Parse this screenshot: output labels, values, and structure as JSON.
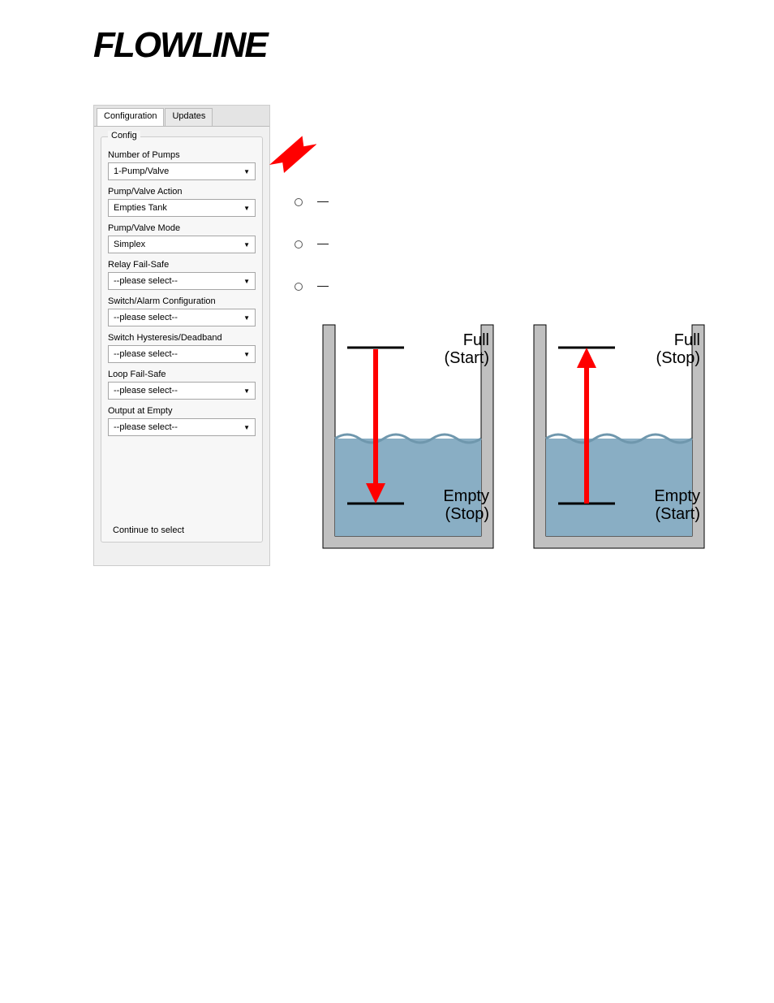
{
  "logo_text": "FLOWLINE",
  "panel": {
    "tabs": [
      {
        "label": "Configuration",
        "active": true
      },
      {
        "label": "Updates",
        "active": false
      }
    ],
    "fieldset_legend": "Config",
    "fields": [
      {
        "label": "Number of Pumps",
        "value": "1-Pump/Valve"
      },
      {
        "label": "Pump/Valve Action",
        "value": "Empties Tank"
      },
      {
        "label": "Pump/Valve Mode",
        "value": "Simplex"
      },
      {
        "label": "Relay Fail-Safe",
        "value": "--please select--"
      },
      {
        "label": "Switch/Alarm Configuration",
        "value": "--please select--"
      },
      {
        "label": "Switch Hysteresis/Deadband",
        "value": "--please select--"
      },
      {
        "label": "Loop Fail-Safe",
        "value": "--please select--"
      },
      {
        "label": "Output at Empty",
        "value": "--please select--"
      }
    ],
    "continue_label": "Continue to select"
  },
  "bullets": [
    {
      "term": "",
      "sep": "—",
      "rest": ""
    },
    {
      "term": "",
      "sep": "—",
      "rest": ""
    },
    {
      "term": "",
      "sep": "—",
      "rest": ""
    }
  ],
  "tanks": {
    "wall_color": "#c0c0c0",
    "wall_stroke": "#000000",
    "water_color": "#89aec4",
    "wave_color": "#6f97ad",
    "arrow_color": "#ff0000",
    "marker_line_color": "#000000",
    "text_color": "#000000",
    "font_size": 20,
    "left": {
      "top_label1": "Full",
      "top_label2": "(Start)",
      "bottom_label1": "Empty",
      "bottom_label2": "(Stop)",
      "arrow_dir": "down"
    },
    "right": {
      "top_label1": "Full",
      "top_label2": "(Stop)",
      "bottom_label1": "Empty",
      "bottom_label2": "(Start)",
      "arrow_dir": "up"
    }
  },
  "callout_arrow_color": "#ff0000"
}
